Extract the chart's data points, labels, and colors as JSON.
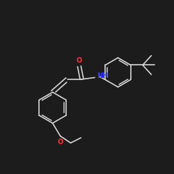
{
  "background_color": "#1c1c1c",
  "bond_color": "#d8d8d8",
  "O_color": "#ff3333",
  "N_color": "#3333ff",
  "bond_width": 1.2,
  "figsize": [
    2.5,
    2.5
  ],
  "dpi": 100,
  "xlim": [
    0,
    10
  ],
  "ylim": [
    0,
    10
  ]
}
